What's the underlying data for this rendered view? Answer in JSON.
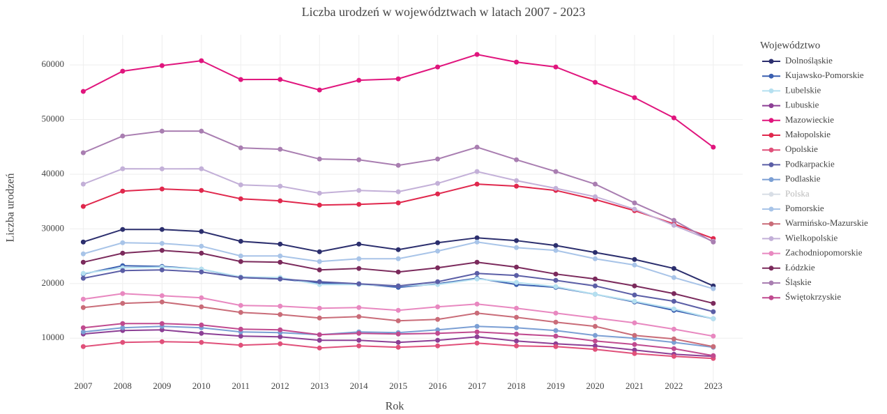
{
  "chart_data": {
    "type": "line",
    "title": "Liczba urodzeń w województwach w latach 2007 - 2023",
    "x_label": "Rok",
    "y_label": "Liczba urodzeń",
    "legend_title": "Województwo",
    "x": [
      2007,
      2008,
      2009,
      2010,
      2011,
      2012,
      2013,
      2014,
      2015,
      2016,
      2017,
      2018,
      2019,
      2020,
      2021,
      2022,
      2023
    ],
    "xlim": [
      2005.7,
      2024.1
    ],
    "ylim": [
      2000,
      65500
    ],
    "yticks": [
      10000,
      20000,
      30000,
      40000,
      50000,
      60000
    ],
    "grid": true,
    "series": [
      {
        "name": "Dolnośląskie",
        "color": "#2c2f6e",
        "values": [
          27600,
          29900,
          29900,
          29520,
          27730,
          27220,
          25820,
          27220,
          26200,
          27470,
          28370,
          27860,
          26960,
          25690,
          24410,
          22760,
          19570
        ]
      },
      {
        "name": "Kujawsko-Pomorskie",
        "color": "#3a5fb0",
        "values": [
          21740,
          23270,
          23140,
          22630,
          21100,
          20840,
          20080,
          19950,
          19310,
          19950,
          20970,
          19820,
          19310,
          18040,
          16630,
          15100,
          13570
        ]
      },
      {
        "name": "Lubelskie",
        "color": "#b5e0f0",
        "values": [
          21860,
          22880,
          23010,
          22630,
          21220,
          21100,
          19820,
          19820,
          19570,
          19820,
          20840,
          20200,
          19440,
          18040,
          16760,
          15360,
          13570
        ]
      },
      {
        "name": "Lubuskie",
        "color": "#8c3f95",
        "values": [
          10770,
          11400,
          11530,
          10890,
          10380,
          10260,
          9620,
          9620,
          9240,
          9620,
          10260,
          9490,
          8980,
          8600,
          7830,
          7070,
          6680
        ]
      },
      {
        "name": "Mazowieckie",
        "color": "#e0157d",
        "values": [
          55150,
          58850,
          59870,
          60770,
          57320,
          57340,
          55410,
          57190,
          57450,
          59620,
          61910,
          60510,
          59620,
          56810,
          54010,
          50310,
          44950
        ]
      },
      {
        "name": "Małopolskie",
        "color": "#e0284d",
        "values": [
          34110,
          36910,
          37300,
          37040,
          35510,
          35130,
          34360,
          34490,
          34750,
          36400,
          38190,
          37810,
          37040,
          35380,
          33340,
          30920,
          28240
        ]
      },
      {
        "name": "Opolskie",
        "color": "#e0507a",
        "values": [
          8470,
          9240,
          9360,
          9240,
          8720,
          8980,
          8210,
          8600,
          8340,
          8600,
          9110,
          8600,
          8470,
          7960,
          7190,
          6680,
          6300
        ]
      },
      {
        "name": "Podkarpackie",
        "color": "#5b5ea6",
        "values": [
          20970,
          22370,
          22500,
          22120,
          21100,
          20840,
          20330,
          19950,
          19570,
          20330,
          21860,
          21480,
          20590,
          19570,
          17910,
          16760,
          14850
        ]
      },
      {
        "name": "Podlaskie",
        "color": "#7b9fd4",
        "values": [
          11150,
          11910,
          12170,
          11910,
          11150,
          11020,
          10640,
          11150,
          11020,
          11530,
          12170,
          11910,
          11400,
          10510,
          10000,
          9240,
          8340
        ]
      },
      {
        "name": "Polska",
        "color": "#d8dee6",
        "visible": false
      },
      {
        "name": "Pomorskie",
        "color": "#a8c4e8",
        "values": [
          25430,
          27470,
          27350,
          26840,
          25050,
          25050,
          24030,
          24540,
          24540,
          25940,
          27600,
          26580,
          26070,
          24540,
          23390,
          21100,
          19060
        ]
      },
      {
        "name": "Warmińsko-Mazurskie",
        "color": "#c96c78",
        "values": [
          15610,
          16380,
          16630,
          15740,
          14720,
          14340,
          13700,
          13950,
          13190,
          13440,
          14590,
          13830,
          12930,
          12170,
          10510,
          9870,
          8470
        ]
      },
      {
        "name": "Wielkopolskie",
        "color": "#c3b0d8",
        "values": [
          38190,
          41000,
          40990,
          41000,
          38060,
          37810,
          36530,
          37040,
          36790,
          38320,
          40490,
          38830,
          37420,
          35890,
          33600,
          30660,
          27730
        ]
      },
      {
        "name": "Zachodniopomorskie",
        "color": "#e888c0",
        "values": [
          17140,
          18160,
          17780,
          17400,
          16000,
          15870,
          15490,
          15610,
          15100,
          15740,
          16250,
          15490,
          14590,
          13700,
          12810,
          11660,
          10380
        ]
      },
      {
        "name": "Łódzkie",
        "color": "#7b2a5c",
        "values": [
          23900,
          25560,
          26070,
          25560,
          24030,
          23900,
          22500,
          22760,
          22120,
          22880,
          23900,
          23010,
          21740,
          20840,
          19570,
          18160,
          16380
        ]
      },
      {
        "name": "Śląskie",
        "color": "#a97eb1",
        "values": [
          43930,
          46990,
          47880,
          47880,
          44820,
          44570,
          42780,
          42650,
          41630,
          42780,
          44950,
          42650,
          40490,
          38190,
          34750,
          31560,
          27600
        ]
      },
      {
        "name": "Świętokrzyskie",
        "color": "#c04a8f",
        "values": [
          11910,
          12680,
          12680,
          12420,
          11660,
          11530,
          10640,
          10890,
          10770,
          10890,
          11150,
          10770,
          10380,
          9490,
          8850,
          8090,
          6810
        ]
      }
    ]
  }
}
